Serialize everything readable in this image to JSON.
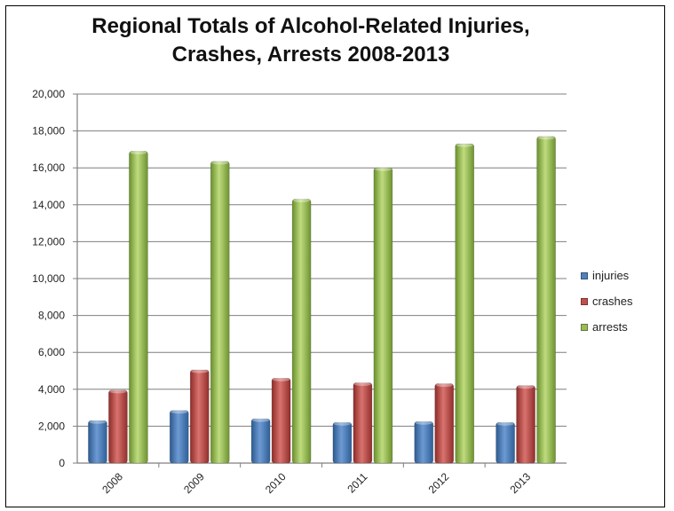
{
  "chart_data": {
    "type": "bar",
    "title_line1": "Regional Totals of Alcohol-Related Injuries,",
    "title_line2": "Crashes, Arrests 2008-2013",
    "categories": [
      "2008",
      "2009",
      "2010",
      "2011",
      "2012",
      "2013"
    ],
    "series": [
      {
        "name": "injuries",
        "color": "#4f81bd",
        "values": [
          2300,
          2850,
          2400,
          2200,
          2250,
          2200
        ]
      },
      {
        "name": "crashes",
        "color": "#c0504d",
        "values": [
          3950,
          5050,
          4600,
          4350,
          4300,
          4200
        ]
      },
      {
        "name": "arrests",
        "color": "#9bbb59",
        "values": [
          16900,
          16350,
          14300,
          16000,
          17300,
          17700
        ]
      }
    ],
    "ylim": [
      0,
      20000
    ],
    "yticks": [
      "0",
      "2,000",
      "4,000",
      "6,000",
      "8,000",
      "10,000",
      "12,000",
      "14,000",
      "16,000",
      "18,000",
      "20,000"
    ],
    "grid": true,
    "legend_position": "right"
  }
}
